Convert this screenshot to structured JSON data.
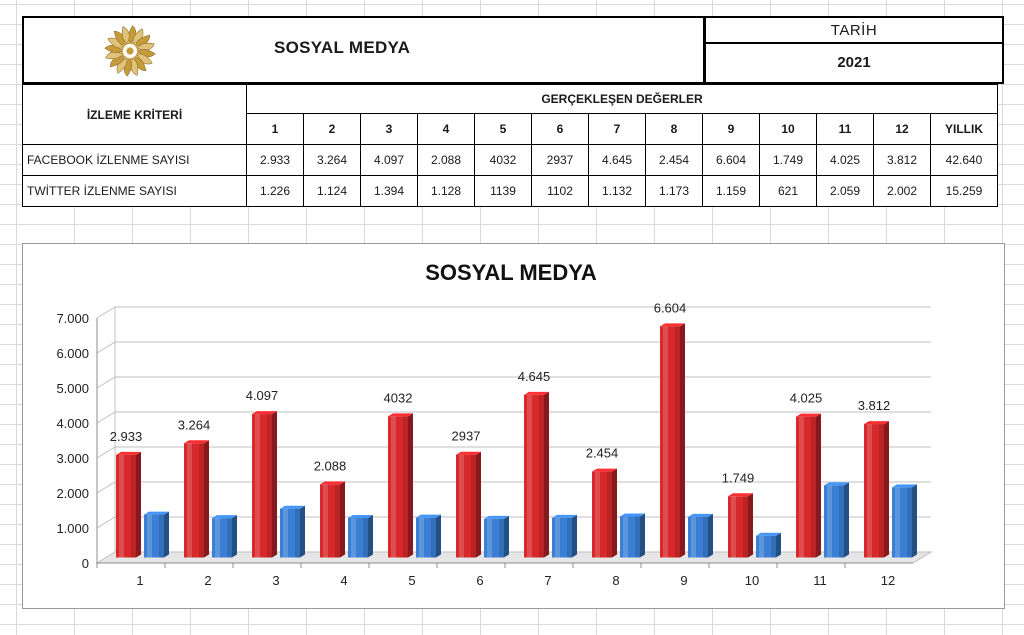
{
  "header": {
    "title": "SOSYAL MEDYA",
    "date_label": "TARİH",
    "year": "2021"
  },
  "table": {
    "criteria_header": "İZLEME KRİTERİ",
    "values_header": "GERÇEKLEŞEN DEĞERLER",
    "columns": [
      "1",
      "2",
      "3",
      "4",
      "5",
      "6",
      "7",
      "8",
      "9",
      "10",
      "11",
      "12",
      "YILLIK"
    ],
    "rows": [
      {
        "label": "FACEBOOK İZLENME SAYISI",
        "values": [
          "2.933",
          "3.264",
          "4.097",
          "2.088",
          "4032",
          "2937",
          "4.645",
          "2.454",
          "6.604",
          "1.749",
          "4.025",
          "3.812",
          "42.640"
        ]
      },
      {
        "label": "TWİTTER İZLENME SAYISI",
        "values": [
          "1.226",
          "1.124",
          "1.394",
          "1.128",
          "1139",
          "1102",
          "1.132",
          "1.173",
          "1.159",
          "621",
          "2.059",
          "2.002",
          "15.259"
        ]
      }
    ]
  },
  "chart_data": {
    "type": "bar",
    "title": "SOSYAL MEDYA",
    "categories": [
      "1",
      "2",
      "3",
      "4",
      "5",
      "6",
      "7",
      "8",
      "9",
      "10",
      "11",
      "12"
    ],
    "series": [
      {
        "values": [
          2933,
          3264,
          4097,
          2088,
          4032,
          2937,
          4645,
          2454,
          6604,
          1749,
          4025,
          3812
        ],
        "labels": [
          "2.933",
          "3.264",
          "4.097",
          "2.088",
          "4032",
          "2937",
          "4.645",
          "2.454",
          "6.604",
          "1.749",
          "4.025",
          "3.812"
        ],
        "color": "#d7282b"
      },
      {
        "values": [
          1226,
          1124,
          1394,
          1128,
          1139,
          1102,
          1132,
          1173,
          1159,
          621,
          2059,
          2002
        ],
        "color": "#3a7fd3"
      }
    ],
    "yticks": [
      "0",
      "1.000",
      "2.000",
      "3.000",
      "4.000",
      "5.000",
      "6.000",
      "7.000"
    ],
    "ylim": [
      0,
      7000
    ],
    "grid": true,
    "legend": "none"
  },
  "colors": {
    "red_bar": "#d7282b",
    "blue_bar": "#3a7fd3",
    "logo_gold": "#c49a3a"
  },
  "icons": {
    "logo": "sunflower-emblem-icon"
  }
}
